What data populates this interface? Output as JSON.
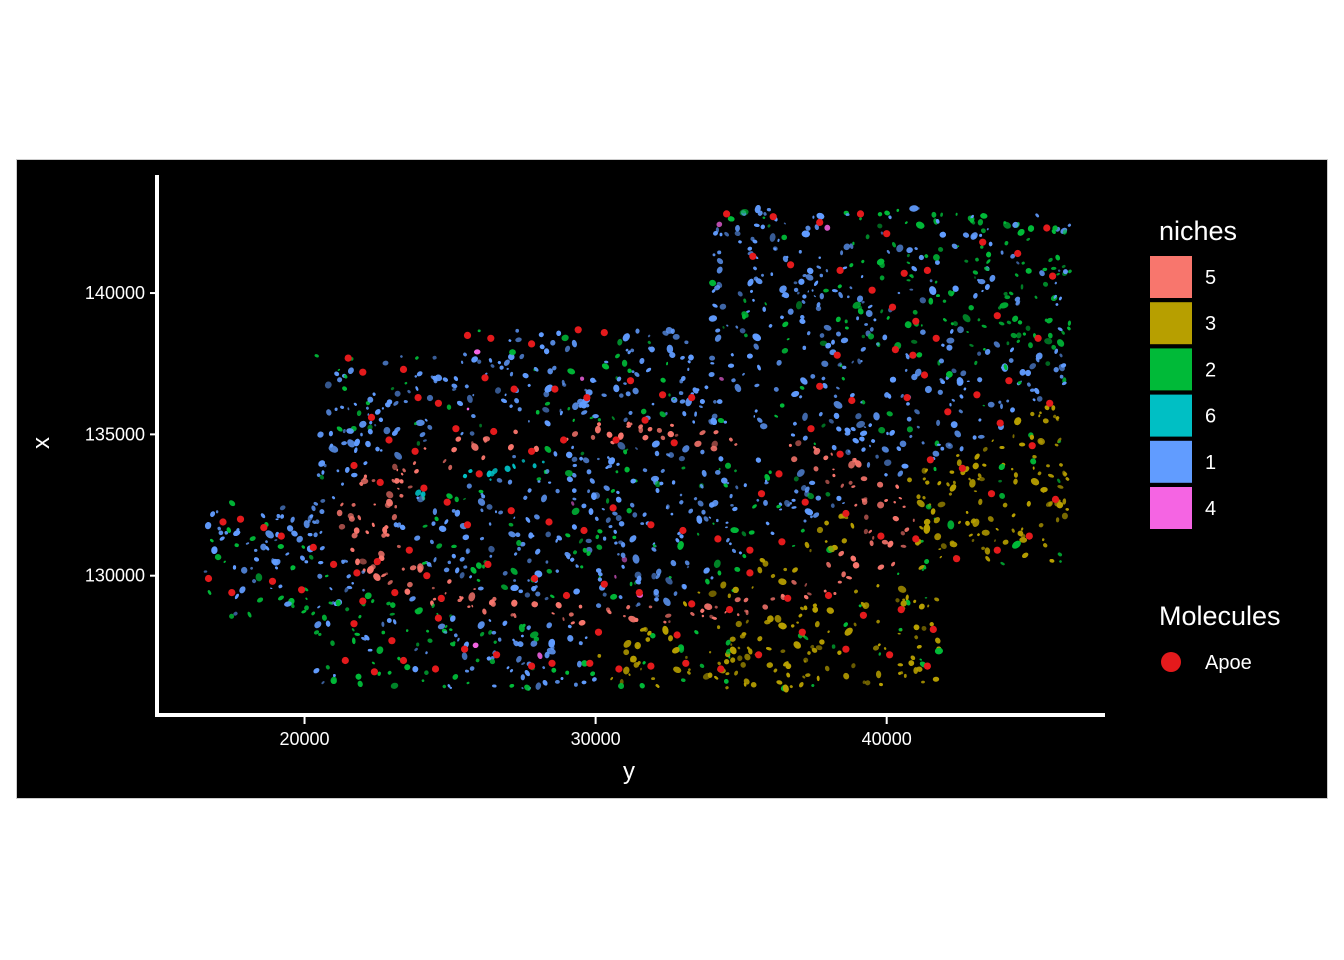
{
  "chart_data": {
    "type": "scatter",
    "title": "",
    "xlabel": "y",
    "ylabel": "x",
    "xlim": [
      15000,
      47500
    ],
    "ylim": [
      125000,
      144000
    ],
    "x_ticks": [
      20000,
      30000,
      40000
    ],
    "y_ticks": [
      130000,
      135000,
      140000
    ],
    "x_tick_labels": [
      "20000",
      "30000",
      "40000"
    ],
    "y_tick_labels": [
      "130000",
      "135000",
      "140000"
    ],
    "background": "#000000",
    "grid": false,
    "legend_placement": "right",
    "niches_legend": {
      "title": "niches",
      "items": [
        {
          "label": "5",
          "color": "#f8766d"
        },
        {
          "label": "3",
          "color": "#b79f00"
        },
        {
          "label": "2",
          "color": "#00ba38"
        },
        {
          "label": "6",
          "color": "#00bfc4"
        },
        {
          "label": "1",
          "color": "#619cff"
        },
        {
          "label": "4",
          "color": "#f564e3"
        }
      ]
    },
    "molecules_legend": {
      "title": "Molecules",
      "items": [
        {
          "label": "Apoe",
          "color": "#e41a1c"
        }
      ]
    },
    "series": [
      {
        "name": "Apoe",
        "color": "#e41a1c",
        "points": [
          [
            17200,
            131900
          ],
          [
            17800,
            132000
          ],
          [
            18600,
            131700
          ],
          [
            19200,
            131400
          ],
          [
            20300,
            131000
          ],
          [
            21000,
            130400
          ],
          [
            21800,
            130100
          ],
          [
            22500,
            130500
          ],
          [
            23600,
            130900
          ],
          [
            24200,
            130000
          ],
          [
            16700,
            129900
          ],
          [
            17500,
            129400
          ],
          [
            18900,
            129800
          ],
          [
            19900,
            129500
          ],
          [
            22000,
            129100
          ],
          [
            23100,
            129400
          ],
          [
            24700,
            129200
          ],
          [
            21500,
            137700
          ],
          [
            22000,
            137200
          ],
          [
            23400,
            137300
          ],
          [
            23900,
            136300
          ],
          [
            22300,
            135600
          ],
          [
            22900,
            134800
          ],
          [
            23800,
            134400
          ],
          [
            24600,
            136100
          ],
          [
            25200,
            135200
          ],
          [
            21700,
            133900
          ],
          [
            22600,
            133300
          ],
          [
            24100,
            133100
          ],
          [
            24900,
            132600
          ],
          [
            26000,
            133600
          ],
          [
            21400,
            127000
          ],
          [
            22400,
            126600
          ],
          [
            23400,
            127000
          ],
          [
            24500,
            126700
          ],
          [
            21700,
            128300
          ],
          [
            23000,
            127700
          ],
          [
            24600,
            128500
          ],
          [
            25500,
            127400
          ],
          [
            26600,
            127200
          ],
          [
            27800,
            126800
          ],
          [
            28500,
            126900
          ],
          [
            29800,
            126900
          ],
          [
            30800,
            126700
          ],
          [
            31900,
            126800
          ],
          [
            33100,
            126900
          ],
          [
            25600,
            138500
          ],
          [
            26400,
            138400
          ],
          [
            27800,
            138200
          ],
          [
            29400,
            138700
          ],
          [
            30300,
            138600
          ],
          [
            26200,
            137000
          ],
          [
            27200,
            136600
          ],
          [
            28600,
            136600
          ],
          [
            29700,
            136300
          ],
          [
            31200,
            136900
          ],
          [
            32300,
            136400
          ],
          [
            33300,
            136300
          ],
          [
            26500,
            135100
          ],
          [
            27800,
            134400
          ],
          [
            28900,
            134800
          ],
          [
            30700,
            134800
          ],
          [
            31700,
            135500
          ],
          [
            32700,
            134700
          ],
          [
            25600,
            131800
          ],
          [
            27100,
            132300
          ],
          [
            28400,
            131900
          ],
          [
            29600,
            131600
          ],
          [
            30600,
            132400
          ],
          [
            31900,
            131800
          ],
          [
            33000,
            131600
          ],
          [
            34200,
            131300
          ],
          [
            35300,
            130900
          ],
          [
            36400,
            131200
          ],
          [
            26300,
            130400
          ],
          [
            27900,
            129900
          ],
          [
            29000,
            129300
          ],
          [
            30300,
            129700
          ],
          [
            31500,
            129400
          ],
          [
            33300,
            129000
          ],
          [
            34600,
            128800
          ],
          [
            34500,
            142800
          ],
          [
            36100,
            142700
          ],
          [
            37700,
            142500
          ],
          [
            39100,
            142800
          ],
          [
            40000,
            142100
          ],
          [
            35400,
            141300
          ],
          [
            36700,
            141000
          ],
          [
            38400,
            140800
          ],
          [
            39500,
            140100
          ],
          [
            40600,
            140700
          ],
          [
            41400,
            140800
          ],
          [
            40200,
            139500
          ],
          [
            41000,
            139000
          ],
          [
            41700,
            138400
          ],
          [
            40300,
            138000
          ],
          [
            40900,
            137800
          ],
          [
            41300,
            137100
          ],
          [
            40700,
            136300
          ],
          [
            42100,
            135800
          ],
          [
            43300,
            141800
          ],
          [
            44500,
            141400
          ],
          [
            45700,
            140600
          ],
          [
            45500,
            142300
          ],
          [
            43800,
            139200
          ],
          [
            45200,
            138400
          ],
          [
            38300,
            137800
          ],
          [
            37700,
            136700
          ],
          [
            38800,
            136200
          ],
          [
            37400,
            135200
          ],
          [
            38400,
            134300
          ],
          [
            36300,
            133600
          ],
          [
            35700,
            132900
          ],
          [
            37200,
            132600
          ],
          [
            38600,
            132200
          ],
          [
            39800,
            131400
          ],
          [
            41000,
            131300
          ],
          [
            42400,
            130600
          ],
          [
            43800,
            130900
          ],
          [
            44900,
            131400
          ],
          [
            45800,
            132700
          ],
          [
            43600,
            132900
          ],
          [
            42600,
            133800
          ],
          [
            41500,
            134100
          ],
          [
            43900,
            135400
          ],
          [
            45000,
            134600
          ],
          [
            45600,
            136100
          ],
          [
            44200,
            136900
          ],
          [
            43100,
            136400
          ],
          [
            35300,
            130100
          ],
          [
            36600,
            129200
          ],
          [
            38000,
            129300
          ],
          [
            39200,
            128600
          ],
          [
            40500,
            128800
          ],
          [
            41600,
            128100
          ],
          [
            37100,
            128000
          ],
          [
            38600,
            127400
          ],
          [
            40100,
            127200
          ],
          [
            41400,
            126800
          ],
          [
            35600,
            127200
          ],
          [
            34300,
            126700
          ],
          [
            32800,
            127900
          ],
          [
            30100,
            128000
          ]
        ]
      }
    ]
  }
}
